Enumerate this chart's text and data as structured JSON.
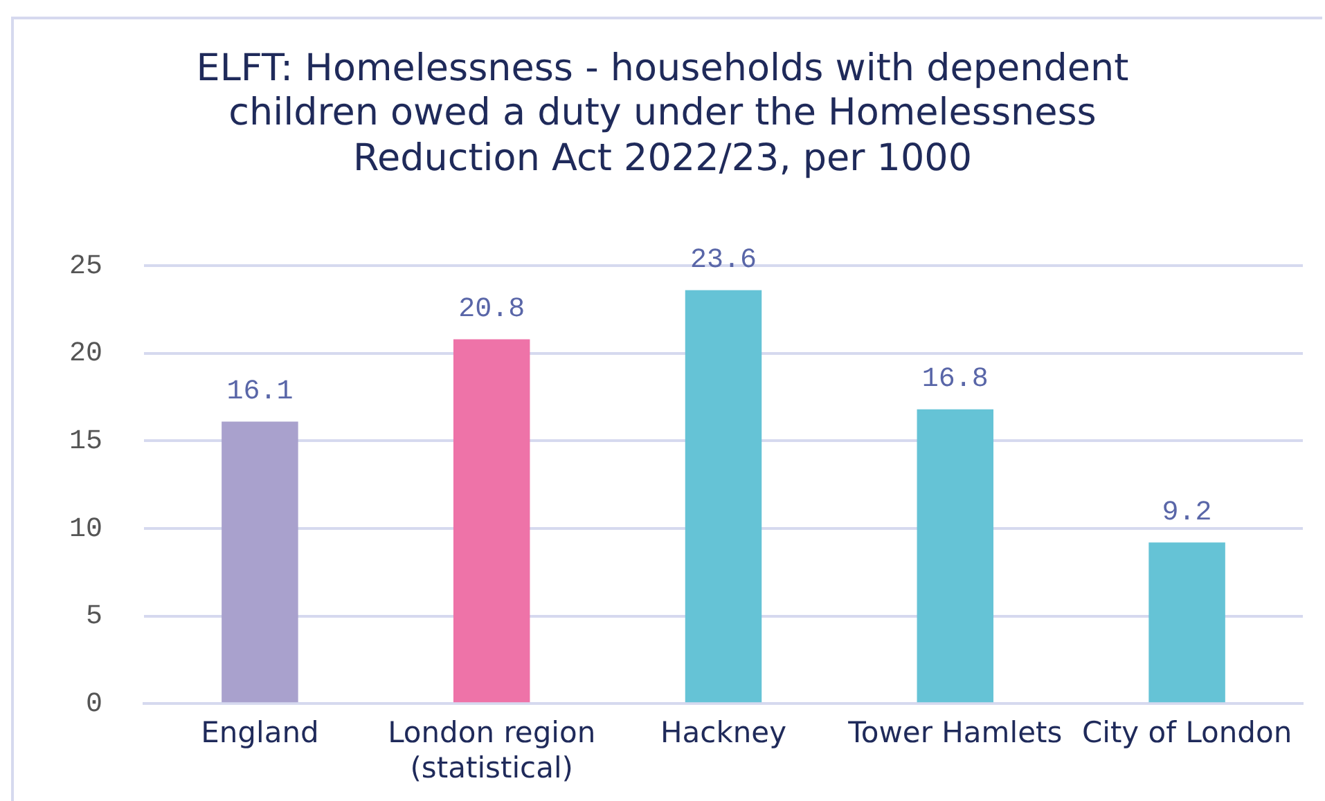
{
  "chart_data": {
    "type": "bar",
    "title": "ELFT: Homelessness - households with dependent children owed a duty under the Homelessness Reduction Act 2022/23, per 1000",
    "categories": [
      "England",
      "London region (statistical)",
      "Hackney",
      "Tower Hamlets",
      "City of London"
    ],
    "values": [
      16.1,
      20.8,
      23.6,
      16.8,
      9.2
    ],
    "colors": [
      "#a9a1cd",
      "#ee73a8",
      "#65c3d6",
      "#65c3d6",
      "#65c3d6"
    ],
    "ylim": [
      0,
      25
    ],
    "yticks": [
      0,
      5,
      10,
      15,
      20,
      25
    ],
    "grid": "y",
    "legend": false,
    "data_labels": true
  }
}
